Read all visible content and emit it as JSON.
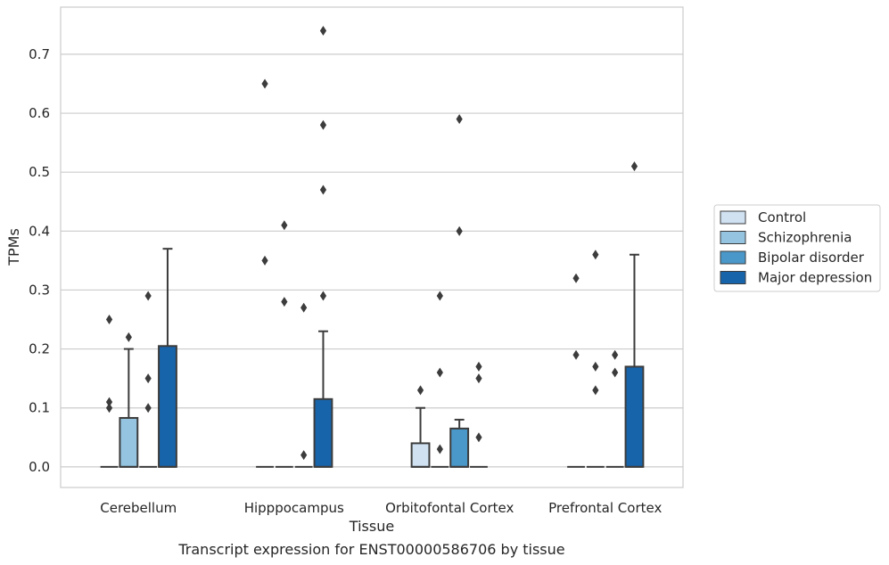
{
  "chart_data": {
    "type": "boxplot",
    "caption": "Transcript expression for ENST00000586706 by tissue",
    "xlabel": "Tissue",
    "ylabel": "TPMs",
    "ylim": [
      -0.035,
      0.78
    ],
    "yticks": [
      0.0,
      0.1,
      0.2,
      0.3,
      0.4,
      0.5,
      0.6,
      0.7
    ],
    "ytick_labels": [
      "0.0",
      "0.1",
      "0.2",
      "0.3",
      "0.4",
      "0.5",
      "0.6",
      "0.7"
    ],
    "grid": "horizontal",
    "legend_position": "right",
    "categories": [
      "Cerebellum",
      "Hipppocampus",
      "Orbitofontal Cortex",
      "Prefrontal Cortex"
    ],
    "series": [
      {
        "name": "Control",
        "color": "#d0e1f2",
        "boxes": [
          {
            "q1": 0,
            "median": 0,
            "q3": 0,
            "whisker_low": 0,
            "whisker_high": 0,
            "outliers": [
              0.25,
              0.11,
              0.1
            ]
          },
          {
            "q1": 0,
            "median": 0,
            "q3": 0,
            "whisker_low": 0,
            "whisker_high": 0,
            "outliers": [
              0.65,
              0.35
            ]
          },
          {
            "q1": 0,
            "median": 0,
            "q3": 0.04,
            "whisker_low": 0,
            "whisker_high": 0.1,
            "outliers": [
              0.13
            ]
          },
          {
            "q1": 0,
            "median": 0,
            "q3": 0,
            "whisker_low": 0,
            "whisker_high": 0,
            "outliers": [
              0.32,
              0.19
            ]
          }
        ]
      },
      {
        "name": "Schizophrenia",
        "color": "#94c4df",
        "boxes": [
          {
            "q1": 0,
            "median": 0,
            "q3": 0.083,
            "whisker_low": 0,
            "whisker_high": 0.2,
            "outliers": [
              0.22
            ]
          },
          {
            "q1": 0,
            "median": 0,
            "q3": 0,
            "whisker_low": 0,
            "whisker_high": 0,
            "outliers": [
              0.41,
              0.28
            ]
          },
          {
            "q1": 0,
            "median": 0,
            "q3": 0,
            "whisker_low": 0,
            "whisker_high": 0,
            "outliers": [
              0.29,
              0.16,
              0.03
            ]
          },
          {
            "q1": 0,
            "median": 0,
            "q3": 0,
            "whisker_low": 0,
            "whisker_high": 0,
            "outliers": [
              0.36,
              0.17,
              0.13
            ]
          }
        ]
      },
      {
        "name": "Bipolar disorder",
        "color": "#4a98c9",
        "boxes": [
          {
            "q1": 0,
            "median": 0,
            "q3": 0,
            "whisker_low": 0,
            "whisker_high": 0,
            "outliers": [
              0.29,
              0.15,
              0.1
            ]
          },
          {
            "q1": 0,
            "median": 0,
            "q3": 0,
            "whisker_low": 0,
            "whisker_high": 0,
            "outliers": [
              0.27,
              0.02
            ]
          },
          {
            "q1": 0,
            "median": 0,
            "q3": 0.065,
            "whisker_low": 0,
            "whisker_high": 0.08,
            "outliers": [
              0.59,
              0.4
            ]
          },
          {
            "q1": 0,
            "median": 0,
            "q3": 0,
            "whisker_low": 0,
            "whisker_high": 0,
            "outliers": [
              0.19,
              0.16
            ]
          }
        ]
      },
      {
        "name": "Major depression",
        "color": "#1764ab",
        "boxes": [
          {
            "q1": 0,
            "median": 0,
            "q3": 0.205,
            "whisker_low": 0,
            "whisker_high": 0.37,
            "outliers": []
          },
          {
            "q1": 0,
            "median": 0,
            "q3": 0.115,
            "whisker_low": 0,
            "whisker_high": 0.23,
            "outliers": [
              0.74,
              0.58,
              0.47,
              0.29
            ]
          },
          {
            "q1": 0,
            "median": 0,
            "q3": 0,
            "whisker_low": 0,
            "whisker_high": 0,
            "outliers": [
              0.17,
              0.15,
              0.05
            ]
          },
          {
            "q1": 0,
            "median": 0,
            "q3": 0.17,
            "whisker_low": 0,
            "whisker_high": 0.36,
            "outliers": [
              0.51
            ]
          }
        ]
      }
    ]
  }
}
